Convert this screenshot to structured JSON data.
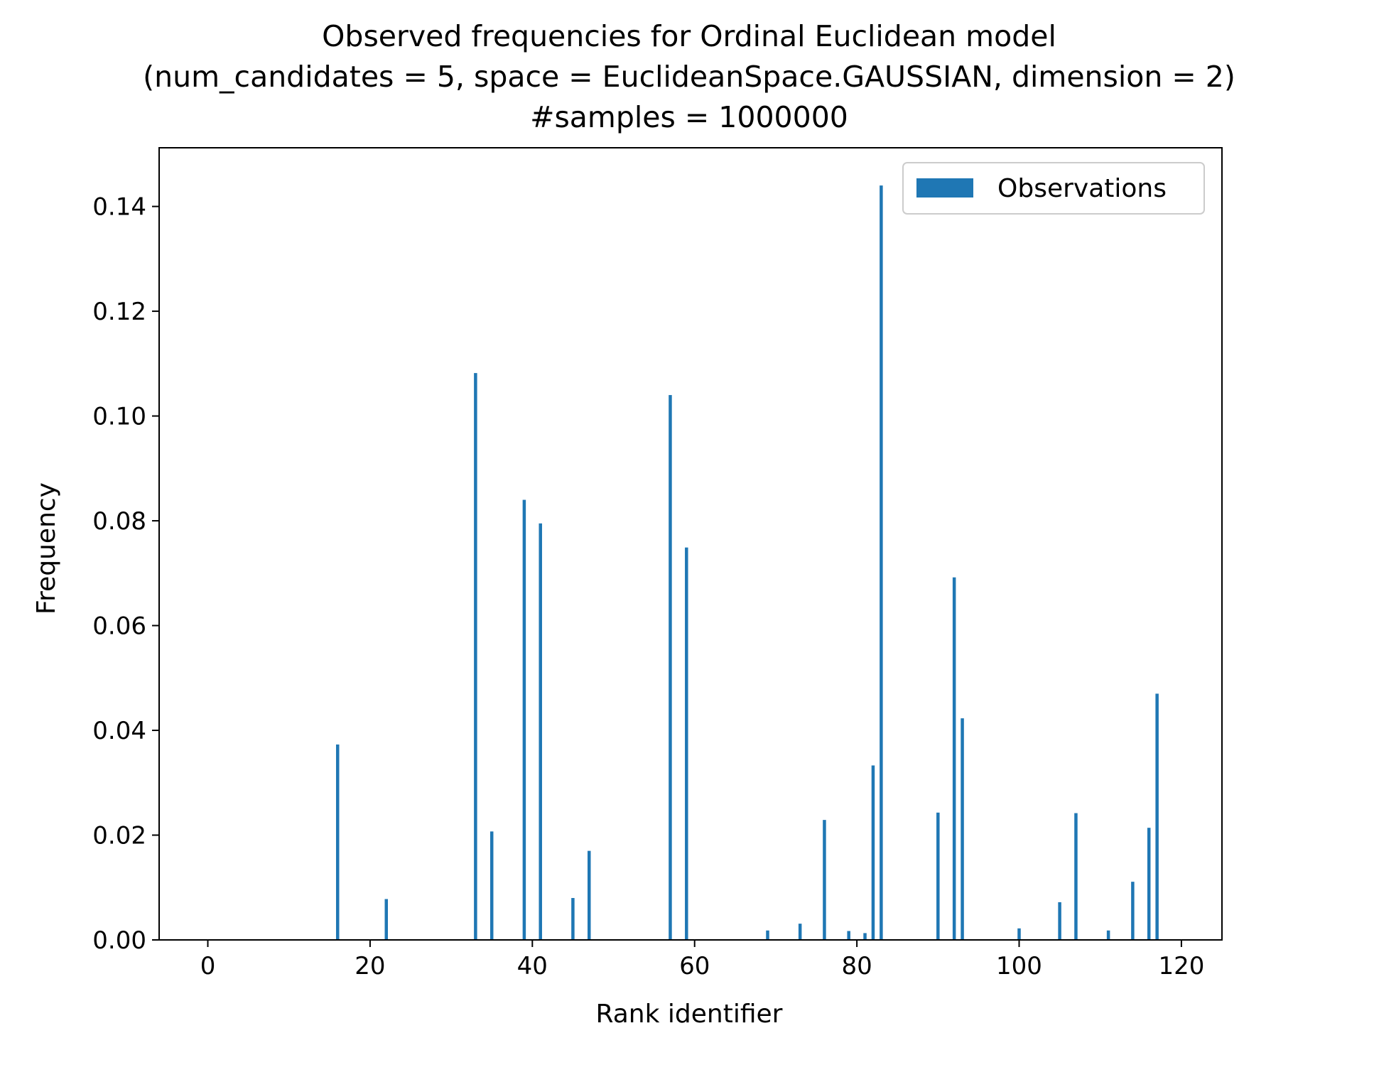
{
  "chart_data": {
    "type": "bar",
    "title_lines": [
      "Observed frequencies for Ordinal Euclidean model",
      "(num_candidates = 5, space = EuclideanSpace.GAUSSIAN, dimension = 2)",
      "#samples = 1000000"
    ],
    "xlabel": "Rank identifier",
    "ylabel": "Frequency",
    "xlim": [
      -6,
      125
    ],
    "ylim": [
      0,
      0.1512
    ],
    "xticks": [
      0,
      20,
      40,
      60,
      80,
      100,
      120
    ],
    "xtick_labels": [
      "0",
      "20",
      "40",
      "60",
      "80",
      "100",
      "120"
    ],
    "yticks": [
      0,
      0.02,
      0.04,
      0.06,
      0.08,
      0.1,
      0.12,
      0.14
    ],
    "ytick_labels": [
      "0.00",
      "0.02",
      "0.04",
      "0.06",
      "0.08",
      "0.10",
      "0.12",
      "0.14"
    ],
    "grid": false,
    "legend_position": "top-right",
    "series": [
      {
        "name": "Observations",
        "color": "#1f77b4",
        "x": [
          16,
          22,
          33,
          35,
          39,
          41,
          45,
          47,
          57,
          59,
          69,
          73,
          76,
          79,
          81,
          82,
          83,
          90,
          92,
          93,
          100,
          105,
          107,
          111,
          114,
          116,
          117
        ],
        "values": [
          0.0373,
          0.0078,
          0.1082,
          0.0207,
          0.084,
          0.0795,
          0.008,
          0.017,
          0.104,
          0.0749,
          0.0018,
          0.0031,
          0.0229,
          0.0017,
          0.0013,
          0.0333,
          0.144,
          0.0243,
          0.0692,
          0.0423,
          0.0022,
          0.0072,
          0.0242,
          0.0018,
          0.0111,
          0.0214,
          0.047
        ]
      }
    ]
  }
}
